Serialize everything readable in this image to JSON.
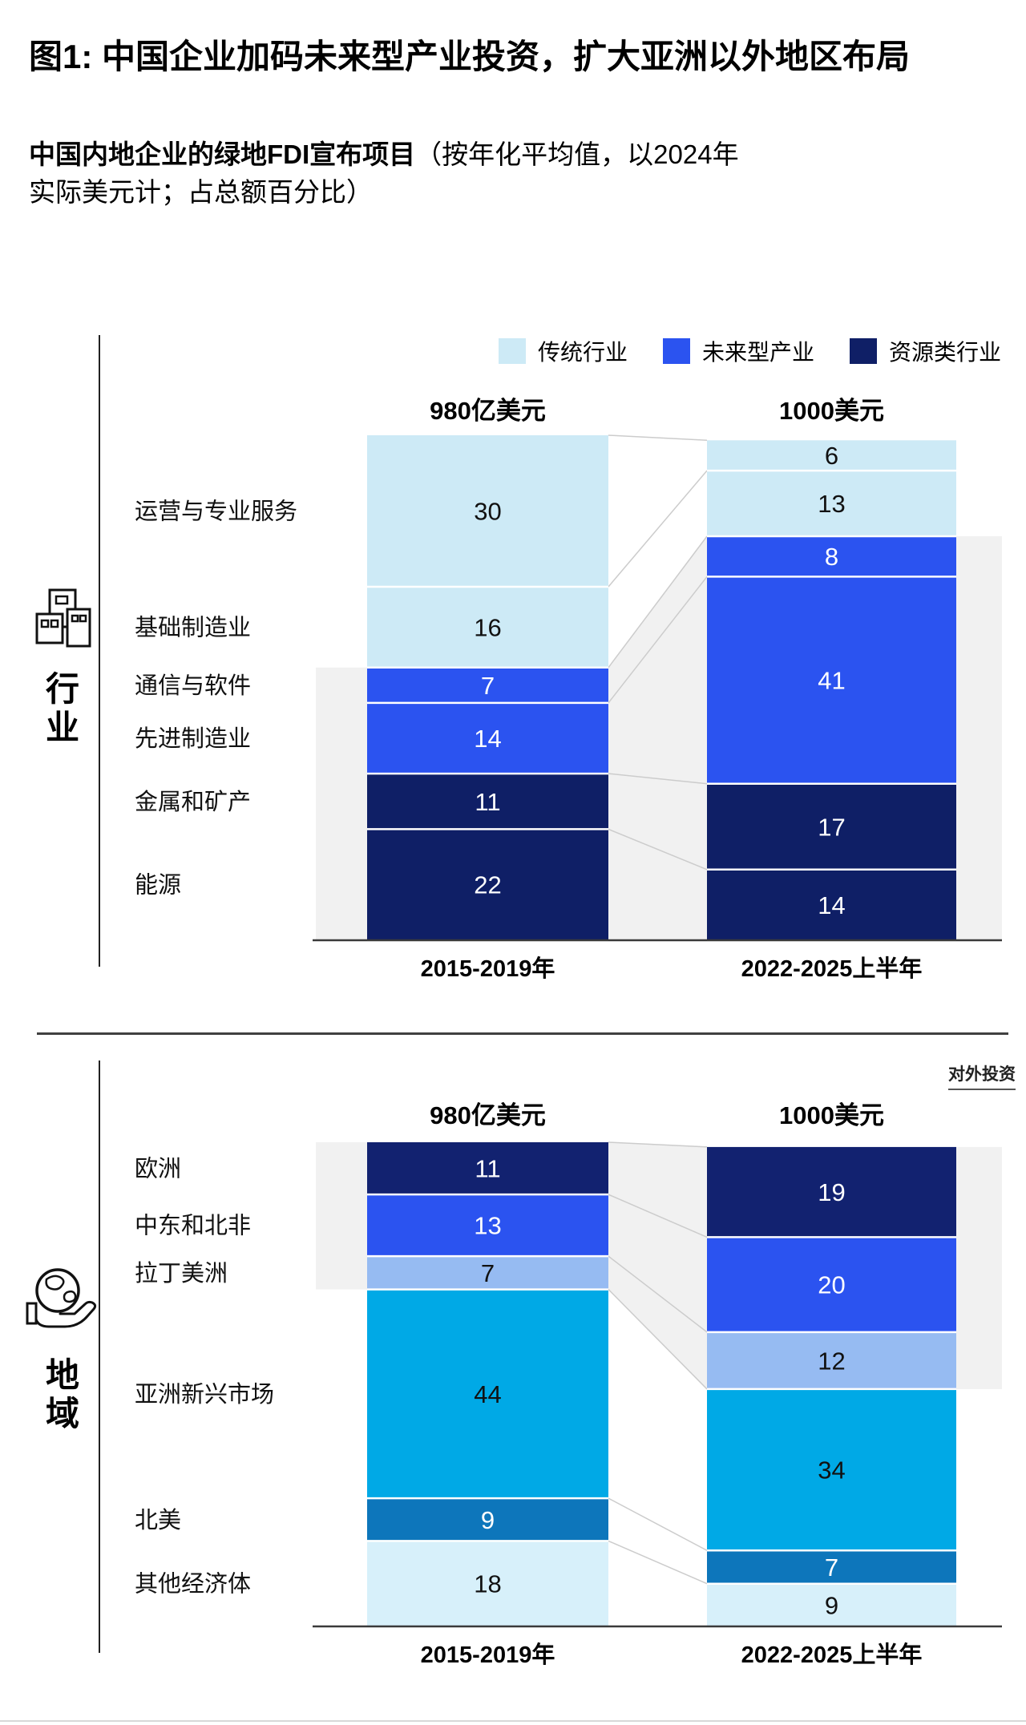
{
  "page": {
    "title": "图1: 中国企业加码未来型产业投资，扩大亚洲以外地区布局",
    "subtitle_bold": "中国内地企业的绿地FDI宣布项目",
    "subtitle_rest": "（按年化平均值，以2024年实际美元计；占总额百分比）",
    "overseas_tag": "对外投资"
  },
  "legend": {
    "items": [
      {
        "label": "传统行业",
        "color": "#cdeaf6"
      },
      {
        "label": "未来型产业",
        "color": "#2b53f0"
      },
      {
        "label": "资源类行业",
        "color": "#0f1f66"
      }
    ]
  },
  "chart_data": [
    {
      "type": "bar",
      "stacked": true,
      "axis_group_label": "行业",
      "axis_icon": "buildings-icon",
      "col_headers": [
        "980亿美元",
        "1000美元"
      ],
      "x_labels": [
        "2015-2019年",
        "2022-2025上半年"
      ],
      "categories": [
        "运营与专业服务",
        "基础制造业",
        "通信与软件",
        "先进制造业",
        "金属和矿产",
        "能源"
      ],
      "series": [
        {
          "name": "2015-2019年",
          "values": [
            30,
            16,
            7,
            14,
            11,
            22
          ]
        },
        {
          "name": "2022-2025上半年",
          "values": [
            6,
            13,
            8,
            41,
            17,
            14
          ]
        }
      ],
      "segment_colors": [
        "#cdeaf6",
        "#cdeaf6",
        "#2b53f0",
        "#2b53f0",
        "#0f1f66",
        "#0f1f66"
      ],
      "highlight": {
        "mode": "below",
        "boundary_index": 2
      }
    },
    {
      "type": "bar",
      "stacked": true,
      "axis_group_label": "地域",
      "axis_icon": "globe-hand-icon",
      "col_headers": [
        "980亿美元",
        "1000美元"
      ],
      "x_labels": [
        "2015-2019年",
        "2022-2025上半年"
      ],
      "categories": [
        "欧洲",
        "中东和北非",
        "拉丁美洲",
        "亚洲新兴市场",
        "北美",
        "其他经济体"
      ],
      "series": [
        {
          "name": "2015-2019年",
          "values": [
            11,
            13,
            7,
            44,
            9,
            18
          ]
        },
        {
          "name": "2022-2025上半年",
          "values": [
            19,
            20,
            12,
            34,
            7,
            9
          ]
        }
      ],
      "segment_colors": [
        "#122270",
        "#2b53f0",
        "#96bbf2",
        "#00a9e6",
        "#0d76bb",
        "#d7f0fa"
      ],
      "highlight": {
        "mode": "above",
        "boundary_index": 3
      }
    }
  ]
}
